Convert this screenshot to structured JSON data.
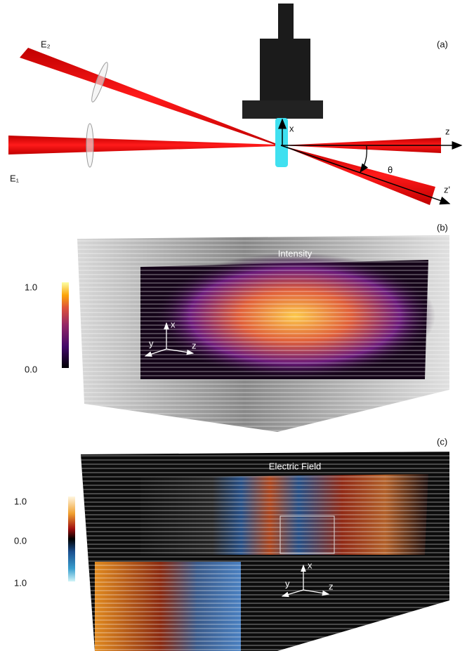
{
  "panels": [
    {
      "label": "(a)",
      "beam_labels": [
        "E₂",
        "E₁"
      ],
      "axis_labels": {
        "x": "x",
        "z": "z",
        "z_prime": "z'",
        "angle": "θ"
      }
    },
    {
      "label": "(b)",
      "title": "Intensity",
      "colorbar_ticks": [
        "1.0",
        "0.0"
      ],
      "axis_labels": [
        "x",
        "y",
        "z"
      ]
    },
    {
      "label": "(c)",
      "title": "Electric Field",
      "colorbar_ticks": [
        "1.0",
        "0.0",
        "1.0"
      ],
      "axis_labels": [
        "x",
        "y",
        "z"
      ]
    }
  ]
}
